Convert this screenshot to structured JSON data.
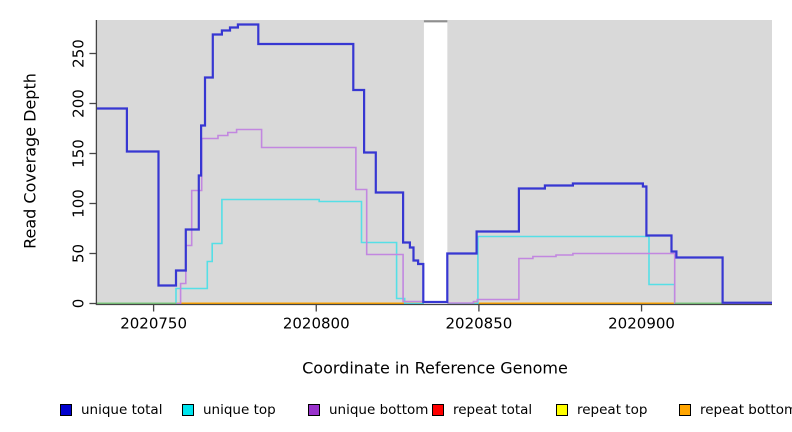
{
  "figure": {
    "kind": "read-coverage-step-plot"
  },
  "axes": {
    "x": {
      "label": "Coordinate in Reference Genome",
      "tick_labels": [
        "2020750",
        "2020800",
        "2020850",
        "2020900"
      ],
      "tick_values": [
        2020750,
        2020800,
        2020850,
        2020900
      ]
    },
    "y": {
      "label": "Read Coverage Depth",
      "tick_labels": [
        "0",
        "50",
        "100",
        "150",
        "200",
        "250"
      ],
      "tick_values": [
        0,
        50,
        100,
        150,
        200,
        250
      ]
    }
  },
  "legend": {
    "items": [
      {
        "label": "unique total",
        "color": "#0000cd"
      },
      {
        "label": "unique top",
        "color": "#00e5ee"
      },
      {
        "label": "unique bottom",
        "color": "#9932cc"
      },
      {
        "label": "repeat total",
        "color": "#ff0000"
      },
      {
        "label": "repeat top",
        "color": "#ffff00"
      },
      {
        "label": "repeat bottom",
        "color": "#ffa500"
      }
    ]
  },
  "chart_data": {
    "type": "line",
    "step": true,
    "title": "",
    "xlabel": "Coordinate in Reference Genome",
    "ylabel": "Read Coverage Depth",
    "xlim": [
      2020732.6,
      2020940.1
    ],
    "ylim": [
      0,
      283.5
    ],
    "grid": false,
    "plot_bg": "#d9d9d9",
    "legend_position": "bottom",
    "gap_region": {
      "x_start": 2020833.1,
      "x_end": 2020840.3,
      "color": "#ffffff",
      "cap_color": "#8f8f8f"
    },
    "zero_overlap_segments": [
      {
        "x_start": 2020732.6,
        "x_end": 2020757.0,
        "color": "#7dcb7d"
      },
      {
        "x_start": 2020910.2,
        "x_end": 2020924.9,
        "color": "#7dcb7d"
      }
    ],
    "series": [
      {
        "name": "repeat total",
        "line_color": "#ff0000",
        "width": 1.5,
        "points": [
          [
            2020732.6,
            0
          ],
          [
            2020940.1,
            0
          ]
        ]
      },
      {
        "name": "repeat top",
        "line_color": "#ffff00",
        "width": 1.5,
        "points": [
          [
            2020732.6,
            0
          ],
          [
            2020940.1,
            0
          ]
        ]
      },
      {
        "name": "repeat bottom",
        "line_color": "#ffa500",
        "width": 2,
        "points": [
          [
            2020732.6,
            0
          ],
          [
            2020940.1,
            0
          ]
        ]
      },
      {
        "name": "unique top",
        "line_color": "#55dfe6",
        "width": 1.6,
        "points": [
          [
            2020732.6,
            0
          ],
          [
            2020756.9,
            15
          ],
          [
            2020766.5,
            42
          ],
          [
            2020768.0,
            60
          ],
          [
            2020771.0,
            104
          ],
          [
            2020800.9,
            102
          ],
          [
            2020813.9,
            61
          ],
          [
            2020824.7,
            5
          ],
          [
            2020827.2,
            0
          ],
          [
            2020849.7,
            67
          ],
          [
            2020902.3,
            19
          ],
          [
            2020910.2,
            0
          ],
          [
            2020940.1,
            0
          ]
        ]
      },
      {
        "name": "unique bottom",
        "line_color": "#c287e0",
        "width": 1.6,
        "points": [
          [
            2020732.6,
            0
          ],
          [
            2020758.3,
            20
          ],
          [
            2020759.9,
            58
          ],
          [
            2020761.7,
            113
          ],
          [
            2020764.8,
            165
          ],
          [
            2020769.8,
            168
          ],
          [
            2020772.8,
            171
          ],
          [
            2020775.5,
            174
          ],
          [
            2020783.2,
            156
          ],
          [
            2020812.2,
            114
          ],
          [
            2020815.5,
            49
          ],
          [
            2020826.7,
            2
          ],
          [
            2020833.1,
            2
          ],
          [
            2020840.3,
            0.5
          ],
          [
            2020848.3,
            2
          ],
          [
            2020849.5,
            4
          ],
          [
            2020862.3,
            45
          ],
          [
            2020866.6,
            47
          ],
          [
            2020873.7,
            48.5
          ],
          [
            2020878.9,
            50
          ],
          [
            2020910.2,
            0
          ],
          [
            2020940.1,
            0
          ]
        ]
      },
      {
        "name": "unique total",
        "line_color": "#3737d2",
        "width": 2.2,
        "points": [
          [
            2020732.6,
            195
          ],
          [
            2020741.8,
            152
          ],
          [
            2020751.5,
            18
          ],
          [
            2020756.9,
            33
          ],
          [
            2020759.9,
            74
          ],
          [
            2020763.9,
            128
          ],
          [
            2020764.6,
            178
          ],
          [
            2020765.8,
            226
          ],
          [
            2020768.2,
            269
          ],
          [
            2020771.0,
            273
          ],
          [
            2020773.5,
            276
          ],
          [
            2020775.9,
            279
          ],
          [
            2020782.2,
            259.5
          ],
          [
            2020811.4,
            213.5
          ],
          [
            2020814.7,
            151
          ],
          [
            2020818.3,
            111
          ],
          [
            2020826.7,
            61
          ],
          [
            2020828.8,
            56
          ],
          [
            2020829.9,
            43
          ],
          [
            2020831.3,
            39.5
          ],
          [
            2020832.9,
            1.5
          ],
          [
            2020840.3,
            50
          ],
          [
            2020849.3,
            72
          ],
          [
            2020862.3,
            115
          ],
          [
            2020870.3,
            118
          ],
          [
            2020878.9,
            120
          ],
          [
            2020900.4,
            117
          ],
          [
            2020901.5,
            68
          ],
          [
            2020909.2,
            52
          ],
          [
            2020910.7,
            46
          ],
          [
            2020924.9,
            0.8
          ],
          [
            2020940.1,
            0.8
          ]
        ]
      }
    ]
  }
}
